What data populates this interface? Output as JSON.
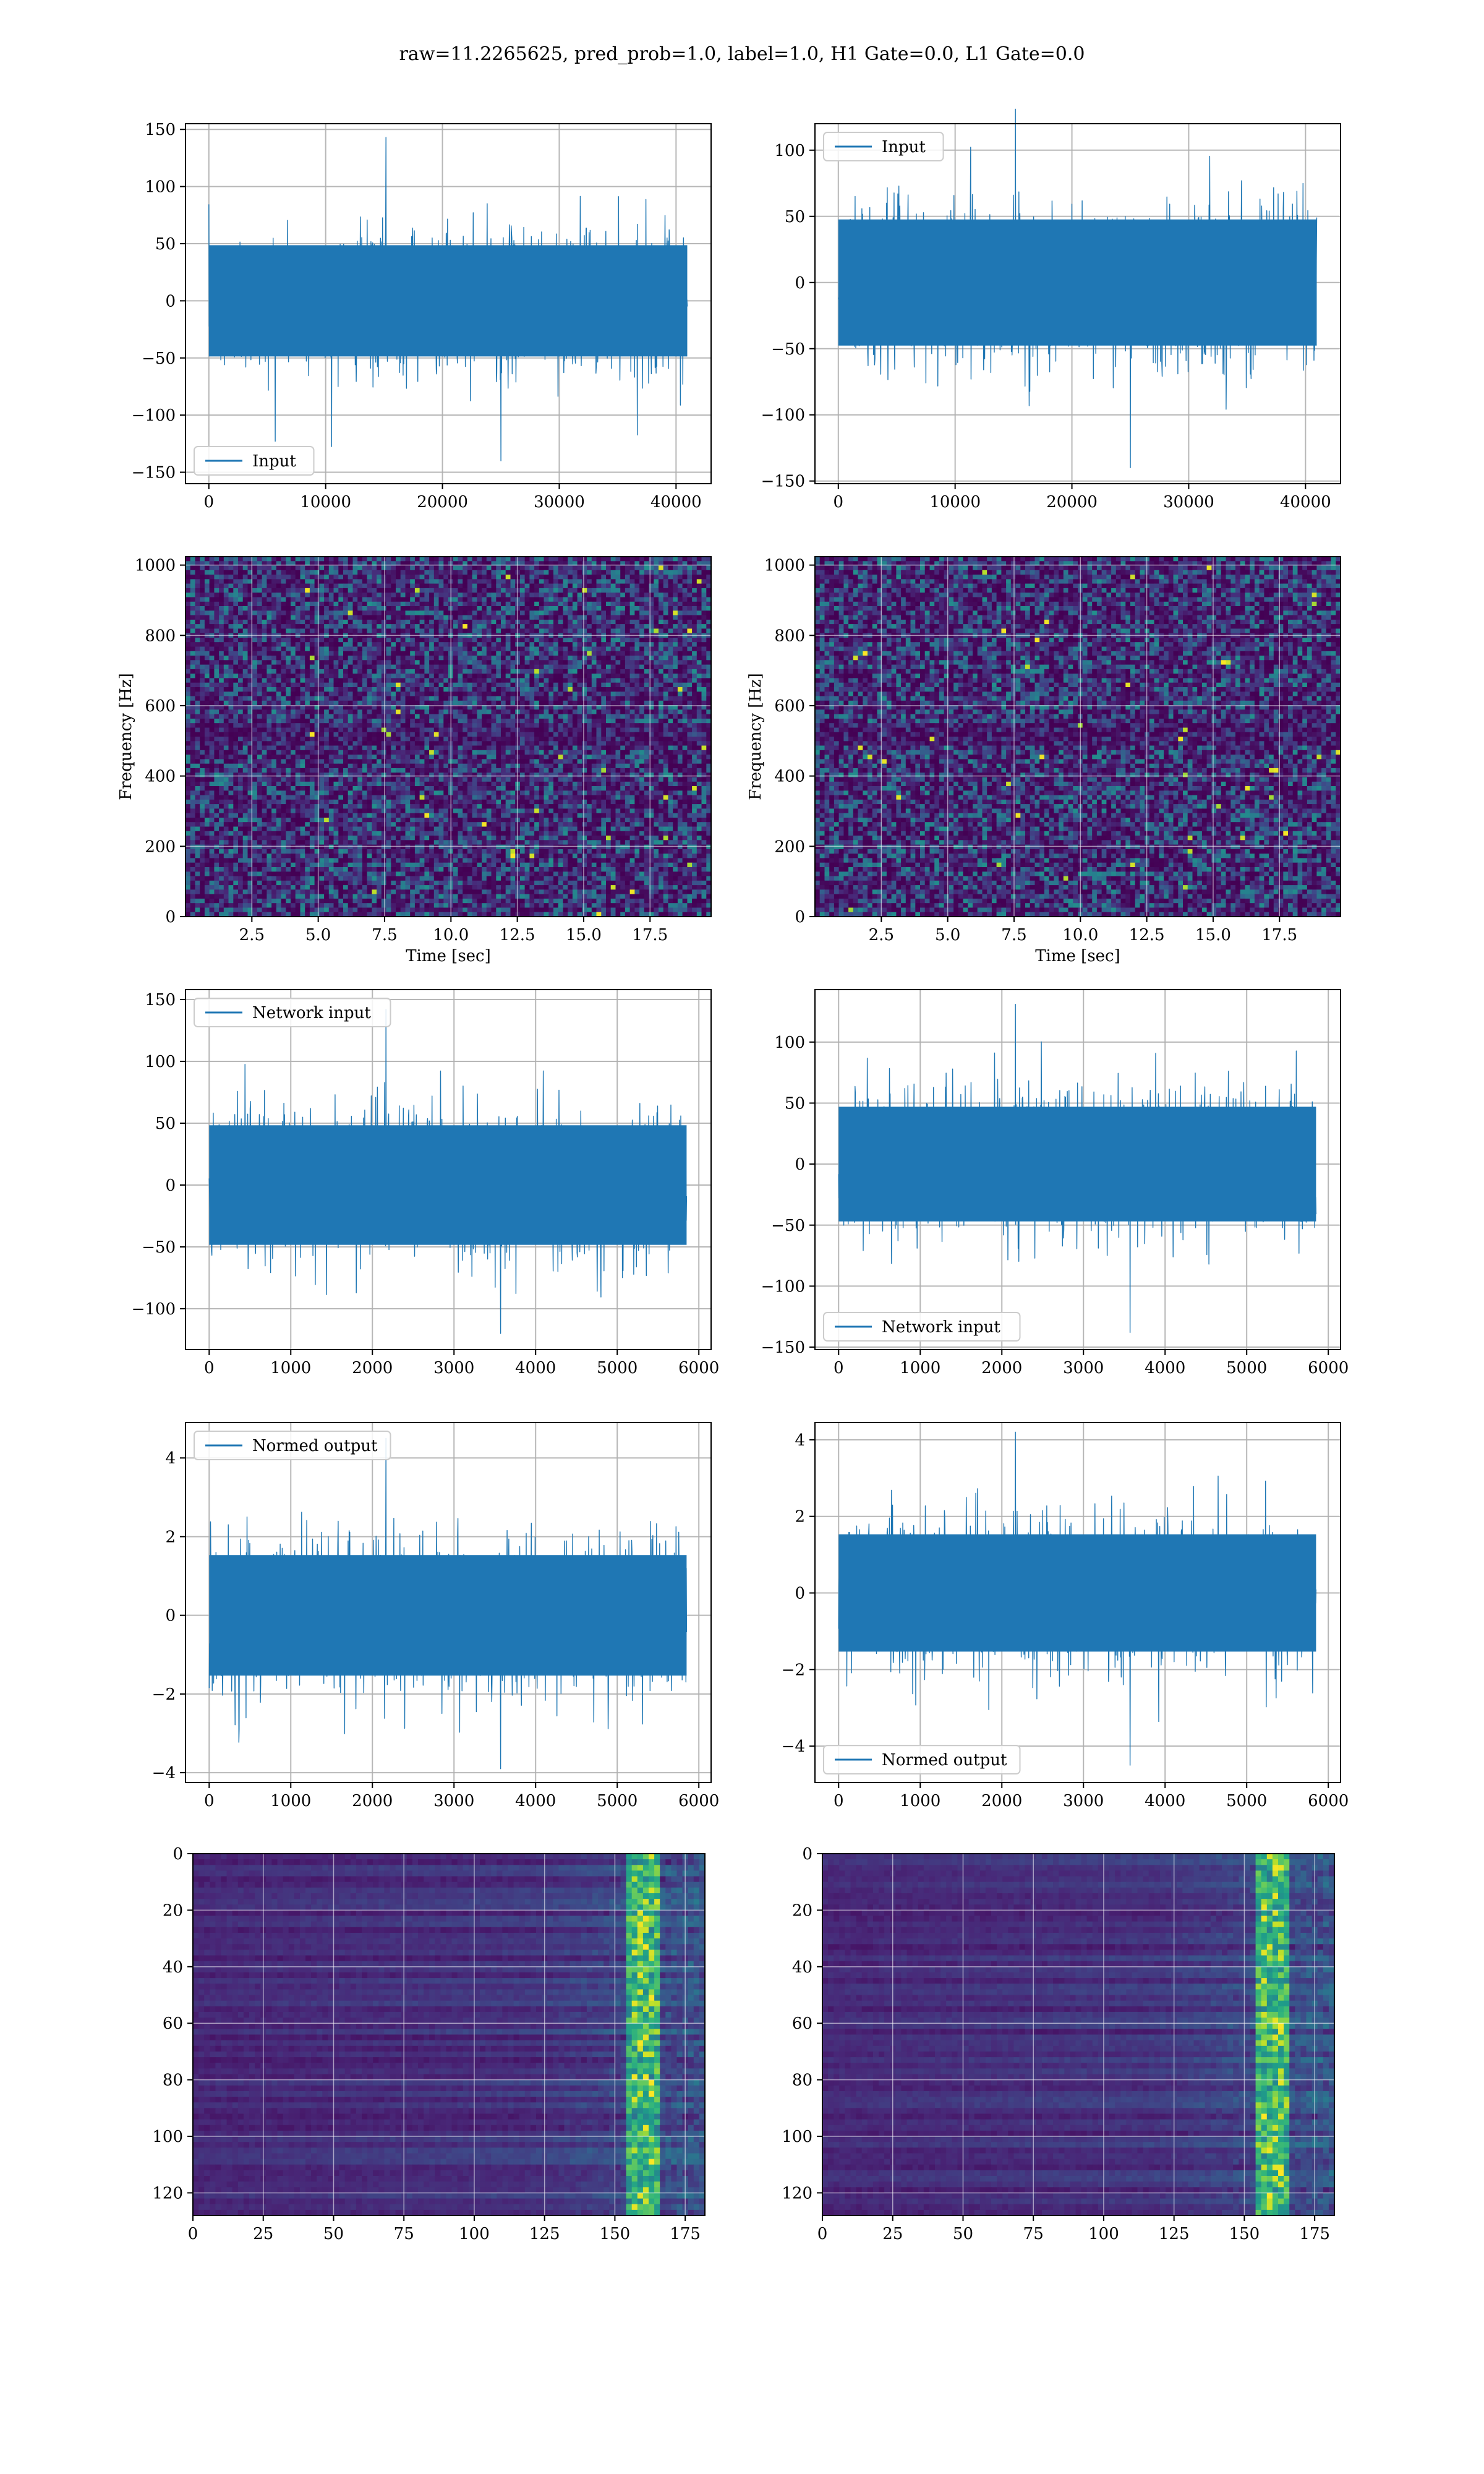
{
  "suptitle": "raw=11.2265625, pred_prob=1.0, label=1.0, H1 Gate=0.0, L1 Gate=0.0",
  "colors": {
    "line": "#1f77b4",
    "grid": "#b0b0b0",
    "viridis_low": "#440154",
    "viridis_high": "#fde725"
  },
  "chart_data": [
    {
      "id": "h1-input",
      "type": "line",
      "title": "",
      "xlabel": "",
      "ylabel": "",
      "series": [
        {
          "name": "Input",
          "x_range": [
            0,
            40960
          ],
          "y_range": [
            -140,
            143
          ]
        }
      ],
      "xlim": [
        -2000,
        43000
      ],
      "ylim": [
        -160,
        155
      ],
      "xticks": [
        0,
        10000,
        20000,
        30000,
        40000
      ],
      "yticks": [
        -150,
        -100,
        -50,
        0,
        50,
        100,
        150
      ],
      "legend": "lower-left",
      "grid": true
    },
    {
      "id": "l1-input",
      "type": "line",
      "title": "",
      "xlabel": "",
      "ylabel": "",
      "series": [
        {
          "name": "Input",
          "x_range": [
            0,
            40960
          ],
          "y_range": [
            -140,
            131
          ]
        }
      ],
      "xlim": [
        -2000,
        43000
      ],
      "ylim": [
        -152,
        120
      ],
      "xticks": [
        0,
        10000,
        20000,
        30000,
        40000
      ],
      "yticks": [
        -150,
        -100,
        -50,
        0,
        50,
        100
      ],
      "legend": "upper-left",
      "grid": true
    },
    {
      "id": "h1-spectrogram",
      "type": "heatmap",
      "title": "",
      "xlabel": "Time [sec]",
      "ylabel": "Frequency [Hz]",
      "xlim": [
        0,
        19.8
      ],
      "ylim": [
        0,
        1024
      ],
      "xticks": [
        2.5,
        5.0,
        7.5,
        10.0,
        12.5,
        15.0,
        17.5
      ],
      "yticks": [
        0,
        200,
        400,
        600,
        800,
        1000
      ],
      "colormap": "viridis",
      "grid": true
    },
    {
      "id": "l1-spectrogram",
      "type": "heatmap",
      "title": "",
      "xlabel": "Time [sec]",
      "ylabel": "Frequency [Hz]",
      "xlim": [
        0,
        19.8
      ],
      "ylim": [
        0,
        1024
      ],
      "xticks": [
        2.5,
        5.0,
        7.5,
        10.0,
        12.5,
        15.0,
        17.5
      ],
      "yticks": [
        0,
        200,
        400,
        600,
        800,
        1000
      ],
      "colormap": "viridis",
      "grid": true
    },
    {
      "id": "h1-network-input",
      "type": "line",
      "title": "",
      "xlabel": "",
      "ylabel": "",
      "series": [
        {
          "name": "Network input",
          "x_range": [
            0,
            5850
          ],
          "y_range": [
            -120,
            142
          ]
        }
      ],
      "xlim": [
        -290,
        6150
      ],
      "ylim": [
        -133,
        158
      ],
      "xticks": [
        0,
        1000,
        2000,
        3000,
        4000,
        5000,
        6000
      ],
      "yticks": [
        -100,
        -50,
        0,
        50,
        100,
        150
      ],
      "legend": "upper-left",
      "grid": true
    },
    {
      "id": "l1-network-input",
      "type": "line",
      "title": "",
      "xlabel": "",
      "ylabel": "",
      "series": [
        {
          "name": "Network input",
          "x_range": [
            0,
            5850
          ],
          "y_range": [
            -138,
            131
          ]
        }
      ],
      "xlim": [
        -290,
        6150
      ],
      "ylim": [
        -152,
        143
      ],
      "xticks": [
        0,
        1000,
        2000,
        3000,
        4000,
        5000,
        6000
      ],
      "yticks": [
        -150,
        -100,
        -50,
        0,
        50,
        100
      ],
      "legend": "lower-left",
      "grid": true
    },
    {
      "id": "h1-normed-output",
      "type": "line",
      "title": "",
      "xlabel": "",
      "ylabel": "",
      "series": [
        {
          "name": "Normed output",
          "x_range": [
            0,
            5850
          ],
          "y_range": [
            -3.9,
            4.5
          ]
        }
      ],
      "xlim": [
        -290,
        6150
      ],
      "ylim": [
        -4.25,
        4.9
      ],
      "xticks": [
        0,
        1000,
        2000,
        3000,
        4000,
        5000,
        6000
      ],
      "yticks": [
        -4,
        -2,
        0,
        2,
        4
      ],
      "legend": "upper-left",
      "grid": true
    },
    {
      "id": "l1-normed-output",
      "type": "line",
      "title": "",
      "xlabel": "",
      "ylabel": "",
      "series": [
        {
          "name": "Normed output",
          "x_range": [
            0,
            5850
          ],
          "y_range": [
            -4.5,
            4.2
          ]
        }
      ],
      "xlim": [
        -290,
        6150
      ],
      "ylim": [
        -4.95,
        4.45
      ],
      "xticks": [
        0,
        1000,
        2000,
        3000,
        4000,
        5000,
        6000
      ],
      "yticks": [
        -4,
        -2,
        0,
        2,
        4
      ],
      "legend": "lower-left",
      "grid": true
    },
    {
      "id": "h1-feature-map",
      "type": "heatmap",
      "title": "",
      "xlabel": "",
      "ylabel": "",
      "xlim": [
        0,
        182
      ],
      "ylim": [
        128,
        0
      ],
      "xticks": [
        0,
        25,
        50,
        75,
        100,
        125,
        150,
        175
      ],
      "yticks": [
        0,
        20,
        40,
        60,
        80,
        100,
        120
      ],
      "colormap": "viridis",
      "grid": true
    },
    {
      "id": "l1-feature-map",
      "type": "heatmap",
      "title": "",
      "xlabel": "",
      "ylabel": "",
      "xlim": [
        0,
        182
      ],
      "ylim": [
        128,
        0
      ],
      "xticks": [
        0,
        25,
        50,
        75,
        100,
        125,
        150,
        175
      ],
      "yticks": [
        0,
        20,
        40,
        60,
        80,
        100,
        120
      ],
      "colormap": "viridis",
      "grid": true
    }
  ]
}
